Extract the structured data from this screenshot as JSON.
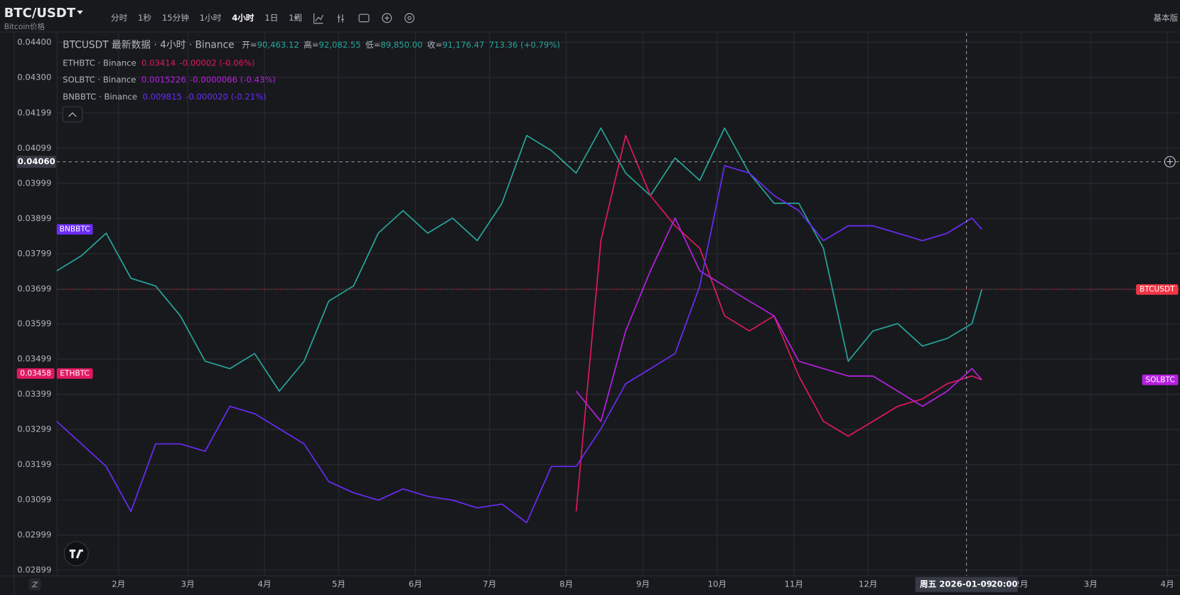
{
  "toolbar": {
    "symbol": "BTC/USDT",
    "subtitle": "Bitcoin价格",
    "intervals": [
      "分时",
      "1秒",
      "15分钟",
      "1小时",
      "4小时",
      "1日",
      "1周"
    ],
    "right": "基本版"
  },
  "legend": {
    "main": "BTCUSDT 最新数据 · 4小时 · Binance",
    "ohlc": [
      {
        "label": "开=",
        "value": "90,463.12"
      },
      {
        "label": "高=",
        "value": "92,082.55"
      },
      {
        "label": "低=",
        "value": "89,850.00"
      },
      {
        "label": "收=",
        "value": "91,176.47"
      }
    ],
    "change": "713.36 (+0.79%)",
    "rows": [
      {
        "name": "ETHBTC · Binance",
        "price": "0.03414",
        "change": "-0.00002 (-0.06%)",
        "color": "#e0195f"
      },
      {
        "name": "SOLBTC · Binance",
        "price": "0.0015226",
        "change": "-0.0000066 (-0.43%)",
        "color": "#b620e0"
      },
      {
        "name": "BNBBTC · Binance",
        "price": "0.009815",
        "change": "-0.000020 (-0.21%)",
        "color": "#6a2cf5"
      }
    ]
  },
  "chart_data": {
    "type": "line",
    "x": [
      6,
      16,
      26,
      36,
      46,
      56,
      66,
      76,
      86,
      96,
      106,
      116,
      126,
      136,
      146,
      156,
      166,
      176,
      186,
      196,
      206,
      216,
      226,
      236,
      246,
      256,
      266,
      276,
      286,
      296,
      306,
      316,
      326,
      336,
      346,
      356,
      366,
      376,
      380
    ],
    "xlim": [
      6,
      460
    ],
    "xticks": [
      {
        "value": 31,
        "label": "2月"
      },
      {
        "value": 59,
        "label": "3月"
      },
      {
        "value": 90,
        "label": "4月"
      },
      {
        "value": 120,
        "label": "5月"
      },
      {
        "value": 151,
        "label": "6月"
      },
      {
        "value": 181,
        "label": "7月"
      },
      {
        "value": 212,
        "label": "8月"
      },
      {
        "value": 243,
        "label": "9月"
      },
      {
        "value": 273,
        "label": "10月"
      },
      {
        "value": 304,
        "label": "11月"
      },
      {
        "value": 334,
        "label": "12月"
      },
      {
        "value": 396,
        "label": "2月"
      },
      {
        "value": 424,
        "label": "3月"
      },
      {
        "value": 455,
        "label": "4月"
      }
    ],
    "ylim": [
      0.02884,
      0.04426
    ],
    "yticks": [
      {
        "value": 0.044,
        "label": "0.04400"
      },
      {
        "value": 0.043,
        "label": "0.04300"
      },
      0.04199,
      0.04099,
      0.03999,
      0.03899,
      0.03799,
      0.03699,
      0.03599,
      0.03499,
      0.03399,
      0.03299,
      0.03199,
      0.03099,
      0.02999,
      0.02899
    ],
    "grid": true,
    "series": [
      {
        "name": "BTCUSDT",
        "color": "#26a69a",
        "values": [
          0.0375,
          0.03793,
          0.03857,
          0.03729,
          0.03707,
          0.03622,
          0.03493,
          0.03472,
          0.03515,
          0.03408,
          0.03493,
          0.03664,
          0.03707,
          0.03857,
          0.03921,
          0.03857,
          0.039,
          0.03836,
          0.03942,
          0.04135,
          0.04092,
          0.04028,
          0.04156,
          0.04028,
          0.03964,
          0.04071,
          0.04007,
          0.04156,
          0.04028,
          0.03942,
          0.03942,
          0.03814,
          0.03493,
          0.03579,
          0.036,
          0.03536,
          0.03558,
          0.036,
          0.03697
        ]
      },
      {
        "name": "ETHBTC",
        "color": "#e0195f",
        "tag": {
          "value": 0.03458,
          "label": "0.03458"
        },
        "values": [
          null,
          null,
          null,
          null,
          null,
          null,
          null,
          null,
          null,
          null,
          null,
          null,
          null,
          null,
          null,
          null,
          null,
          null,
          null,
          null,
          null,
          0.03066,
          0.03836,
          0.04135,
          0.03964,
          0.03878,
          0.03814,
          0.03622,
          0.03579,
          0.03622,
          0.03451,
          0.03322,
          0.0328,
          0.03322,
          0.03365,
          0.03386,
          0.03429,
          0.03451,
          0.0344
        ]
      },
      {
        "name": "SOLBTC",
        "color": "#b620e0",
        "values": [
          null,
          null,
          null,
          null,
          null,
          null,
          null,
          null,
          null,
          null,
          null,
          null,
          null,
          null,
          null,
          null,
          null,
          null,
          null,
          null,
          null,
          0.03408,
          0.03322,
          0.03579,
          0.0375,
          0.039,
          0.0375,
          0.03707,
          0.03664,
          0.03622,
          0.03493,
          0.03472,
          0.03451,
          0.03451,
          0.03408,
          0.03365,
          0.03408,
          0.03472,
          0.0344
        ]
      },
      {
        "name": "BNBBTC",
        "color": "#6a2cf5",
        "values": [
          0.03322,
          0.03258,
          0.03194,
          0.03066,
          0.03258,
          0.03258,
          0.03237,
          0.03365,
          0.03344,
          0.03301,
          0.03258,
          0.03151,
          0.03119,
          0.03098,
          0.0313,
          0.03109,
          0.03098,
          0.03076,
          0.03087,
          0.03034,
          0.03194,
          0.03194,
          0.03301,
          0.03429,
          0.03472,
          0.03515,
          0.03707,
          0.04049,
          0.04028,
          0.03964,
          0.03921,
          0.03836,
          0.03878,
          0.03878,
          0.03857,
          0.03836,
          0.03857,
          0.039,
          0.03868
        ]
      }
    ],
    "crosshair": {
      "y": {
        "value": 0.0406,
        "label": "0.04060"
      },
      "x": {
        "value": 373.8,
        "label": "周五 2026-01-09"
      },
      "time": "20:00"
    }
  }
}
